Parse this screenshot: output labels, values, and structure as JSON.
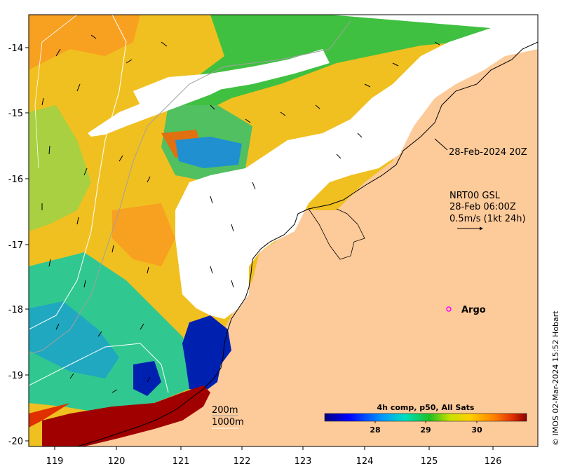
{
  "map": {
    "x_ticks": [
      "119",
      "120",
      "121",
      "122",
      "123",
      "124",
      "125",
      "126"
    ],
    "y_ticks": [
      "-14",
      "-15",
      "-16",
      "-17",
      "-18",
      "-19",
      "-20"
    ],
    "annotations": {
      "satellite_pass": "28-Feb-2024 20Z",
      "current_model": "NRT00 GSL",
      "current_time": "28-Feb 06:00Z",
      "current_scale": "0.5m/s (1kt 24h)",
      "argo_label": "Argo",
      "isobath_200": "200m",
      "isobath_1000": "1000m"
    },
    "colorbar": {
      "title": "4h comp, p50, All Sats",
      "ticks": [
        "28",
        "29",
        "30"
      ]
    },
    "credit": "© IMOS 02-Mar-2024 15:52 Hobart",
    "colors": {
      "land": "#fdca9a",
      "cloud": "#ffffff",
      "sst_cold": "#00007f",
      "sst_warm": "#8b0000",
      "argo": "#ff00ff"
    }
  }
}
